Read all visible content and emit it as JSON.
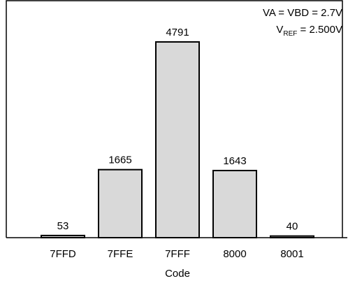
{
  "chart_data": {
    "type": "bar",
    "categories": [
      "7FFD",
      "7FFE",
      "7FFF",
      "8000",
      "8001"
    ],
    "values": [
      53,
      1665,
      4791,
      1643,
      40
    ],
    "data_labels": [
      "53",
      "1665",
      "4791",
      "1643",
      "40"
    ],
    "xlabel": "Code",
    "ylabel": "",
    "ylim": [
      0,
      5800
    ],
    "grid": false,
    "bar_color": "#d9d9d9",
    "edge_color": "#000000",
    "annotations": {
      "line1": "VA = VBD = 2.7V",
      "line2_main": "V",
      "line2_sub": "REF",
      "line2_rest": " = 2.500V"
    }
  }
}
